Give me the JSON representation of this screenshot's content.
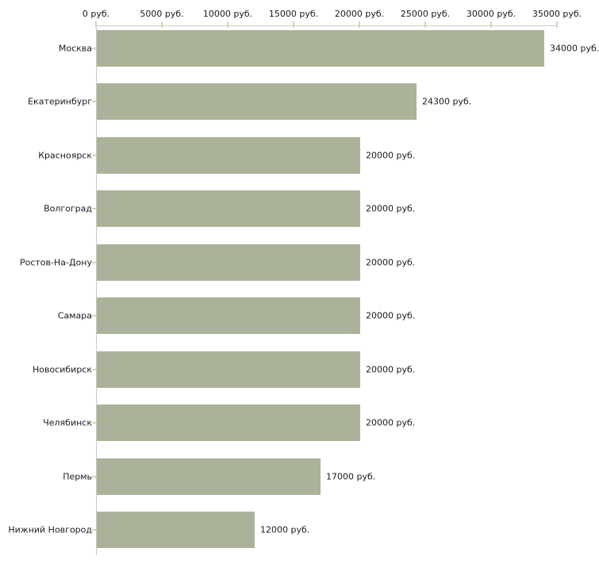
{
  "chart_data": {
    "type": "bar",
    "orientation": "horizontal",
    "title": "",
    "xlabel": "",
    "ylabel": "",
    "unit": "руб.",
    "categories": [
      "Москва",
      "Екатеринбург",
      "Красноярск",
      "Волгоград",
      "Ростов-На-Дону",
      "Самара",
      "Новосибирск",
      "Челябинск",
      "Пермь",
      "Нижний Новгород"
    ],
    "values": [
      34000,
      24300,
      20000,
      20000,
      20000,
      20000,
      20000,
      20000,
      17000,
      12000
    ],
    "value_labels": [
      "34000 руб.",
      "24300 руб.",
      "20000 руб.",
      "20000 руб.",
      "20000 руб.",
      "20000 руб.",
      "20000 руб.",
      "20000 руб.",
      "17000 руб.",
      "12000 руб."
    ],
    "x_ticks": [
      0,
      5000,
      10000,
      15000,
      20000,
      25000,
      30000,
      35000
    ],
    "x_tick_labels": [
      "0 руб.",
      "5000 руб.",
      "10000 руб.",
      "15000 руб.",
      "20000 руб.",
      "25000 руб.",
      "30000 руб.",
      "35000 руб."
    ],
    "xlim": [
      0,
      35000
    ],
    "grid": false,
    "legend": false,
    "axis_position": "top",
    "bar_color": "#aab299",
    "axis_color": "#c8c8c8",
    "tick_color": "#d4d4ae",
    "text_color": "#1a1a1a",
    "background_color": "#ffffff"
  }
}
